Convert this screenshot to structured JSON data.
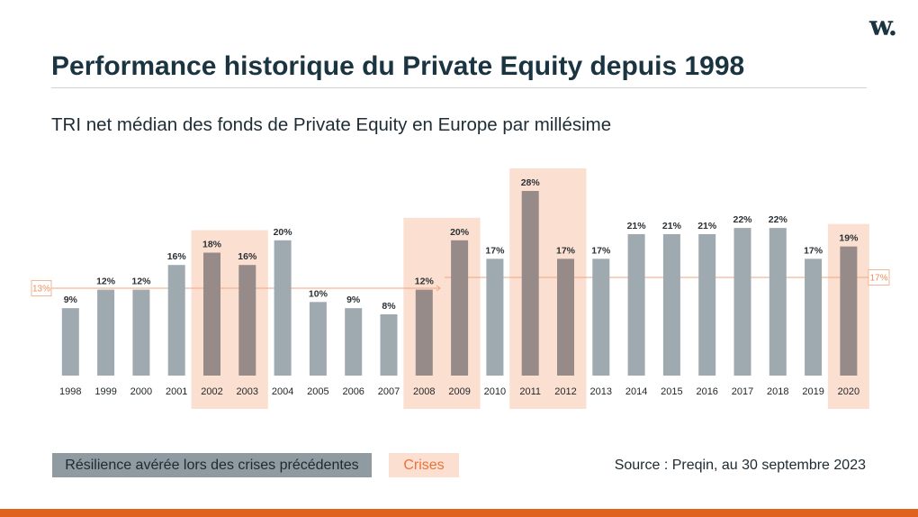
{
  "slide": {
    "logo_text": "w.",
    "title": "Performance historique du Private Equity depuis 1998"
  },
  "legend": {
    "resilience_label": "Résilience avérée lors des crises précédentes",
    "crises_label": "Crises"
  },
  "source": "Source : Preqin, au 30 septembre 2023",
  "colors": {
    "title": "#1b3441",
    "bar": "#9ea9b0",
    "bar_crisis": "#978b89",
    "crisis_fill": "#fbe0d2",
    "reference_line": "#f2a47e",
    "accent": "#e1621d",
    "legend_grey": "#8f9aa1",
    "crises_text": "#e8733a"
  },
  "chart_data": {
    "type": "bar",
    "title": "TRI net médian des fonds de Private Equity en Europe par millésime",
    "categories": [
      "1998",
      "1999",
      "2000",
      "2001",
      "2002",
      "2003",
      "2004",
      "2005",
      "2006",
      "2007",
      "2008",
      "2009",
      "2010",
      "2011",
      "2012",
      "2013",
      "2014",
      "2015",
      "2016",
      "2017",
      "2018",
      "2019",
      "2020"
    ],
    "values": [
      9,
      12,
      12,
      16,
      18,
      16,
      20,
      10,
      9,
      8,
      12,
      20,
      17,
      28,
      17,
      17,
      21,
      21,
      21,
      22,
      22,
      17,
      19
    ],
    "unit": "%",
    "highlight_periods": [
      {
        "from": "2002",
        "to": "2003"
      },
      {
        "from": "2008",
        "to": "2009"
      },
      {
        "from": "2011",
        "to": "2012"
      },
      {
        "from": "2020",
        "to": "2020"
      }
    ],
    "reference_lines": [
      {
        "label": "13%",
        "value": 13,
        "from": "1998",
        "to": "2008"
      },
      {
        "label": "17%",
        "value": 17,
        "from": "2009",
        "to": "2020"
      }
    ],
    "grid": false
  }
}
